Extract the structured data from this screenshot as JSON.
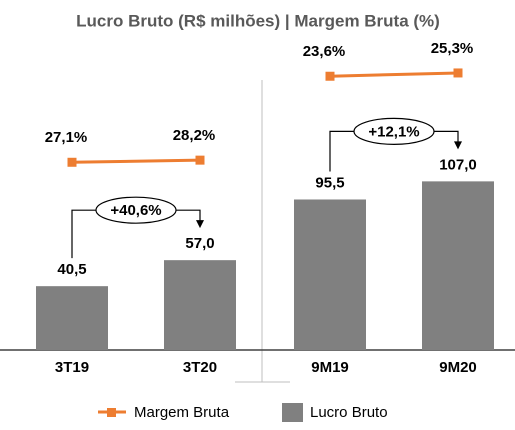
{
  "title": "Lucro Bruto (R$ milhões) | Margem Bruta (%)",
  "chart_data": [
    {
      "type": "bar",
      "categories": [
        "3T19",
        "3T20"
      ],
      "ylim": [
        0,
        184
      ],
      "y2lim": [
        -70,
        80
      ],
      "series": [
        {
          "name": "Lucro Bruto",
          "color": "#808080",
          "values": [
            40.5,
            57.0
          ],
          "value_labels": [
            "40,5",
            "57,0"
          ]
        },
        {
          "name": "Margem Bruta",
          "type": "line",
          "axis": "y2",
          "color": "#ed7d31",
          "values": [
            27.1,
            28.2
          ],
          "value_labels": [
            "27,1%",
            "28,2%"
          ]
        }
      ],
      "annotation": "+40,6%"
    },
    {
      "type": "bar",
      "categories": [
        "9M19",
        "9M20"
      ],
      "ylim": [
        0,
        184
      ],
      "y2lim": [
        -118,
        32
      ],
      "series": [
        {
          "name": "Lucro Bruto",
          "color": "#808080",
          "values": [
            95.5,
            107.0
          ],
          "value_labels": [
            "95,5",
            "107,0"
          ]
        },
        {
          "name": "Margem Bruta",
          "type": "line",
          "axis": "y2",
          "color": "#ed7d31",
          "values": [
            23.6,
            25.3
          ],
          "value_labels": [
            "23,6%",
            "25,3%"
          ]
        }
      ],
      "annotation": "+12,1%"
    }
  ]
}
